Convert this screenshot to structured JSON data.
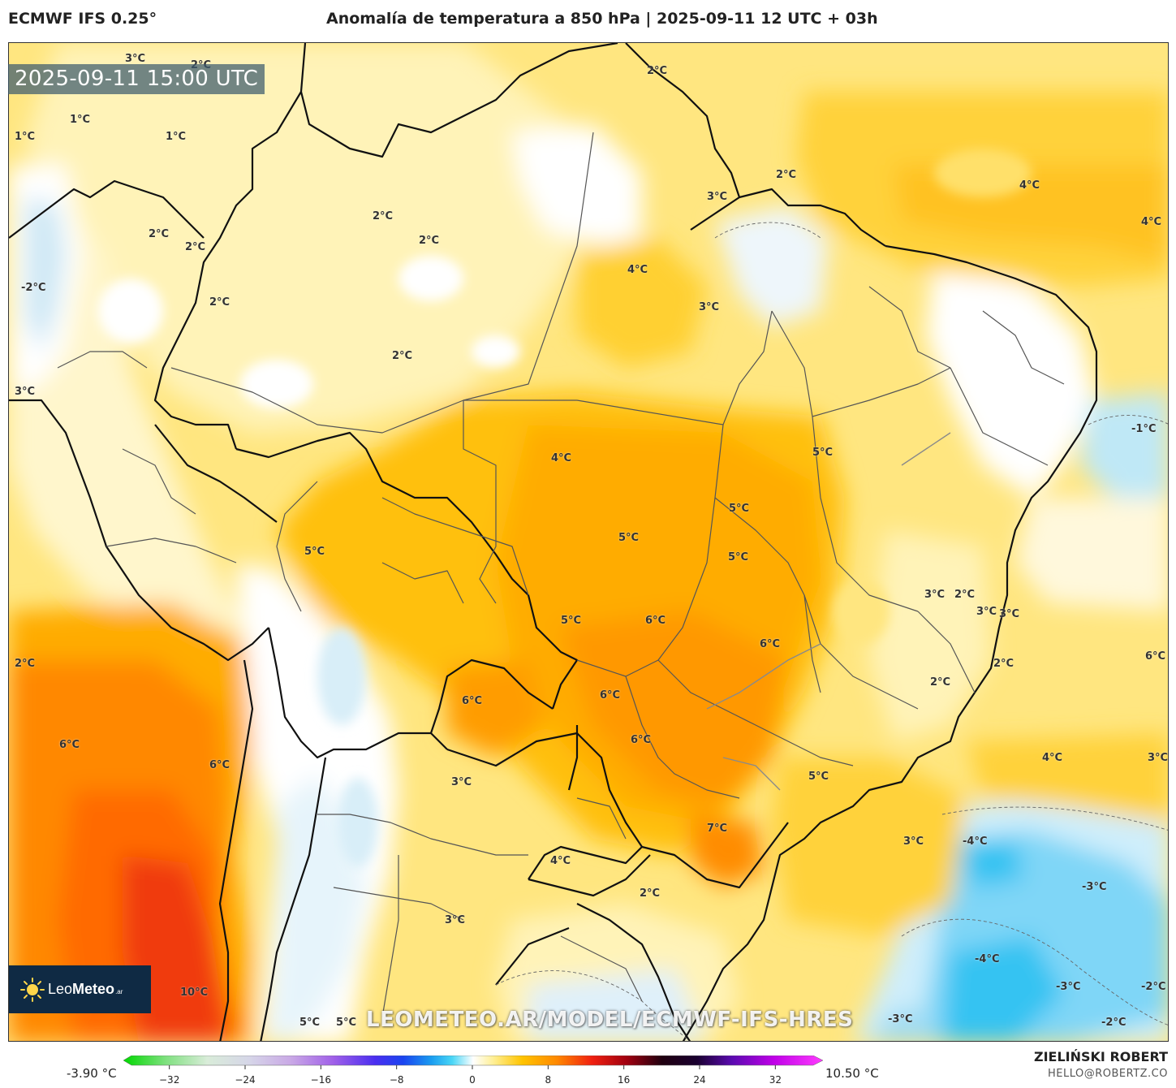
{
  "header": {
    "model": "ECMWF IFS 0.25°",
    "title": "Anomalía de temperatura a 850 hPa | 2025-09-11 12 UTC + 03h"
  },
  "valid_time": "2025-09-11 15:00 UTC",
  "watermark": "LEOMETEO.AR/MODEL/ECMWF-IFS-HRES",
  "logo": {
    "name_light": "Leo",
    "name_bold": "Meteo",
    "suffix": ".ar",
    "icon": "sun-icon"
  },
  "author": {
    "name": "ZIELIŃSKI ROBERT",
    "email": "HELLO@ROBERTZ.CO"
  },
  "scale": {
    "min_label": "-3.90 °C",
    "max_label": "10.50 °C",
    "ticks": [
      "−32",
      "−24",
      "−16",
      "−8",
      "0",
      "8",
      "16",
      "24",
      "32"
    ],
    "tick_values": [
      -32,
      -24,
      -16,
      -8,
      0,
      8,
      16,
      24,
      32
    ],
    "range": [
      -36,
      36
    ]
  },
  "labels": [
    {
      "text": "3°C"
    },
    {
      "text": "2°C"
    },
    {
      "text": "1°C"
    },
    {
      "text": "1°C"
    },
    {
      "text": "1°C"
    },
    {
      "text": "2°C"
    },
    {
      "text": "2°C"
    },
    {
      "text": "2°C"
    },
    {
      "text": "2°C"
    },
    {
      "text": "2°C"
    },
    {
      "text": "2°C"
    },
    {
      "text": "3°C"
    },
    {
      "text": "-2°C"
    },
    {
      "text": "2°C"
    },
    {
      "text": "2°C"
    },
    {
      "text": "3°C"
    },
    {
      "text": "4°C"
    },
    {
      "text": "4°C"
    },
    {
      "text": "4°C"
    },
    {
      "text": "3°C"
    },
    {
      "text": "3°C"
    },
    {
      "text": "4°C"
    },
    {
      "text": "5°C"
    },
    {
      "text": "-1°C"
    },
    {
      "text": "5°C"
    },
    {
      "text": "5°C"
    },
    {
      "text": "5°C"
    },
    {
      "text": "5°C"
    },
    {
      "text": "3°C"
    },
    {
      "text": "2°C"
    },
    {
      "text": "3°C"
    },
    {
      "text": "6°C"
    },
    {
      "text": "5°C"
    },
    {
      "text": "6°C"
    },
    {
      "text": "6°C"
    },
    {
      "text": "2°C"
    },
    {
      "text": "2°C"
    },
    {
      "text": "2°C"
    },
    {
      "text": "6°C"
    },
    {
      "text": "6°C"
    },
    {
      "text": "6°C"
    },
    {
      "text": "6°C"
    },
    {
      "text": "6°C"
    },
    {
      "text": "4°C"
    },
    {
      "text": "3°C"
    },
    {
      "text": "5°C"
    },
    {
      "text": "3°C"
    },
    {
      "text": "7°C"
    },
    {
      "text": "3°C"
    },
    {
      "text": "-4°C"
    },
    {
      "text": "4°C"
    },
    {
      "text": "-3°C"
    },
    {
      "text": "2°C"
    },
    {
      "text": "3°C"
    },
    {
      "text": "-4°C"
    },
    {
      "text": "10°C"
    },
    {
      "text": "-3°C"
    },
    {
      "text": "-2°C"
    },
    {
      "text": "5°C"
    },
    {
      "text": "5°C"
    },
    {
      "text": "-3°C"
    },
    {
      "text": "-2°C"
    }
  ]
}
